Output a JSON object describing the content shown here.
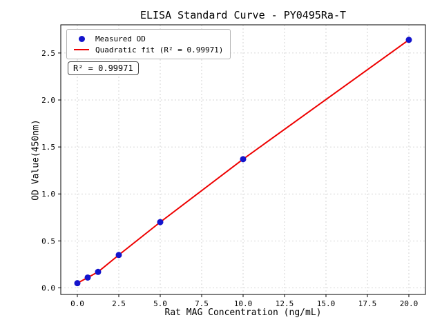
{
  "chart_data": {
    "type": "scatter",
    "title": "ELISA Standard Curve - PY0495Ra-T",
    "xlabel": "Rat MAG Concentration (ng/mL)",
    "ylabel": "OD Value(450nm)",
    "annotation": "R² = 0.99971",
    "grid": true,
    "legend_position": "upper left",
    "xlim": [
      -1,
      21
    ],
    "ylim": [
      -0.07,
      2.8
    ],
    "x_ticks": [
      0.0,
      2.5,
      5.0,
      7.5,
      10.0,
      12.5,
      15.0,
      17.5,
      20.0
    ],
    "x_tick_labels": [
      "0.0",
      "2.5",
      "5.0",
      "7.5",
      "10.0",
      "12.5",
      "15.0",
      "17.5",
      "20.0"
    ],
    "y_ticks": [
      0.0,
      0.5,
      1.0,
      1.5,
      2.0,
      2.5
    ],
    "y_tick_labels": [
      "0.0",
      "0.5",
      "1.0",
      "1.5",
      "2.0",
      "2.5"
    ],
    "series": [
      {
        "name": "Measured OD",
        "type": "scatter",
        "color": "#1414cc",
        "x": [
          0,
          0.625,
          1.25,
          2.5,
          5,
          10,
          20
        ],
        "y": [
          0.05,
          0.11,
          0.17,
          0.35,
          0.7,
          1.37,
          2.64
        ]
      },
      {
        "name": "Quadratic fit (R² = 0.99971)",
        "type": "line",
        "color": "#ee0000",
        "x": [
          0,
          0.625,
          1.25,
          2.5,
          5,
          10,
          20
        ],
        "y": [
          0.05,
          0.11,
          0.17,
          0.35,
          0.7,
          1.37,
          2.64
        ]
      }
    ],
    "colors": {
      "point": "#1414cc",
      "line": "#ee0000",
      "grid": "#c9c9c9",
      "axis": "#000000"
    }
  }
}
